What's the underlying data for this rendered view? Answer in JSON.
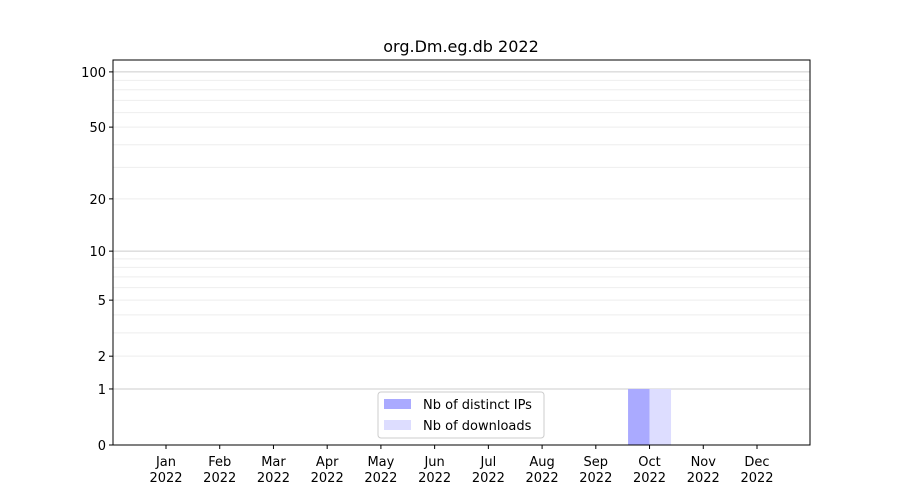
{
  "chart_data": {
    "type": "bar",
    "title": "org.Dm.eg.db 2022",
    "xlabel": "",
    "ylabel": "",
    "yscale": "log(1+y)",
    "ylim": [
      0,
      116
    ],
    "y_ticks": [
      0,
      1,
      2,
      5,
      10,
      20,
      50,
      100
    ],
    "y_minor_grid": [
      3,
      4,
      6,
      7,
      8,
      9,
      30,
      40,
      60,
      70,
      80,
      90
    ],
    "grid": true,
    "legend_position": "bottom-center",
    "categories": [
      "Jan\n2022",
      "Feb\n2022",
      "Mar\n2022",
      "Apr\n2022",
      "May\n2022",
      "Jun\n2022",
      "Jul\n2022",
      "Aug\n2022",
      "Sep\n2022",
      "Oct\n2022",
      "Nov\n2022",
      "Dec\n2022"
    ],
    "series": [
      {
        "name": "Nb of distinct IPs",
        "color": "#aaaaff",
        "values": [
          0,
          0,
          0,
          0,
          0,
          0,
          0,
          0,
          0,
          1,
          0,
          0
        ]
      },
      {
        "name": "Nb of downloads",
        "color": "#ddddff",
        "values": [
          0,
          0,
          0,
          0,
          0,
          0,
          0,
          0,
          0,
          1,
          0,
          0
        ]
      }
    ]
  }
}
